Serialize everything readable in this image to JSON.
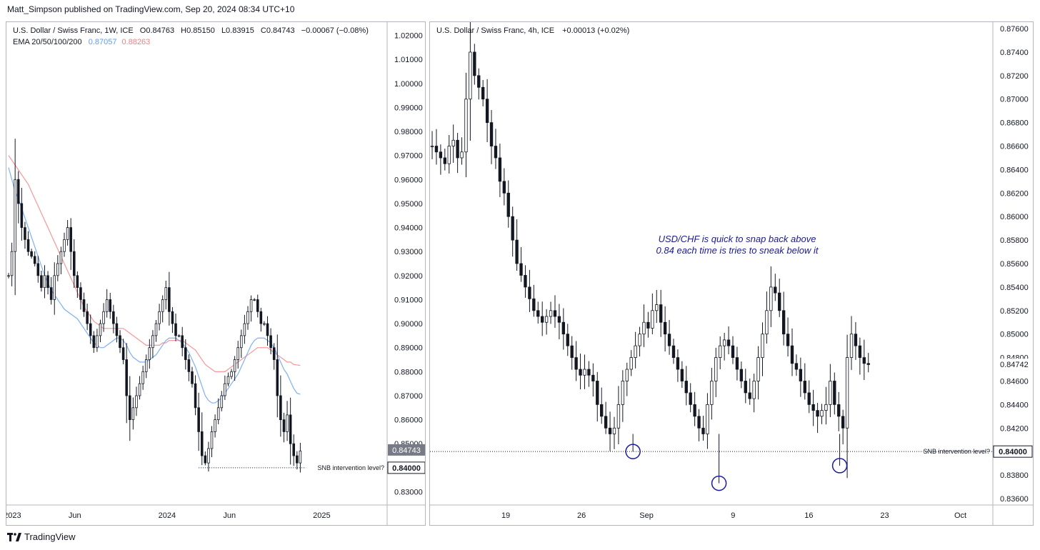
{
  "header": {
    "publisher_line": "Matt_Simpson published on TradingView.com, Sep 20, 2024 08:34 UTC+10"
  },
  "footer": {
    "brand": "TradingView",
    "logo_icon": "tradingview-logo-icon"
  },
  "colors": {
    "candle": "#131722",
    "ema_blue": "#5b9cf6",
    "ema_red": "#f77c80",
    "annotation": "#1a1a8c",
    "circle": "#1a1aa0",
    "price_box_grey": "#787b86"
  },
  "chart_data": [
    {
      "type": "candlestick",
      "symbol_line": "U.S. Dollar / Swiss Franc, 1W, ICE",
      "ohlc": {
        "o_label": "O0.84763",
        "h_label": "H0.85150",
        "l_label": "L0.83915",
        "c_label": "C0.84743",
        "change": "−0.00067 (−0.08%)"
      },
      "indicator_label": "EMA 20/50/100/200",
      "ema_values": {
        "ema_blue_value": "0.87057",
        "ema_red_value": "0.88263"
      },
      "y_ticks": [
        "1.02000",
        "1.01000",
        "1.00000",
        "0.99000",
        "0.98000",
        "0.97000",
        "0.96000",
        "0.95000",
        "0.94000",
        "0.93000",
        "0.92000",
        "0.91000",
        "0.90000",
        "0.89000",
        "0.88000",
        "0.87000",
        "0.86000",
        "0.85000",
        "0.83000"
      ],
      "y_tick_values": [
        1.02,
        1.01,
        1.0,
        0.99,
        0.98,
        0.97,
        0.96,
        0.95,
        0.94,
        0.93,
        0.92,
        0.91,
        0.9,
        0.89,
        0.88,
        0.87,
        0.86,
        0.85,
        0.83
      ],
      "ylim": [
        0.8245,
        1.0255
      ],
      "x_ticks": [
        "2023",
        "Jun",
        "2024",
        "Jun",
        "2025"
      ],
      "x_tick_weeks": [
        2,
        23,
        54,
        75,
        106
      ],
      "x_range_weeks": [
        0,
        128
      ],
      "price_boxes": [
        {
          "label": "0.84743",
          "value": 0.84743,
          "style": "grey"
        },
        {
          "label": "0.84000",
          "value": 0.84,
          "style": "white"
        }
      ],
      "level_line": {
        "value": 0.84,
        "label": "SNB intervention level?"
      },
      "close_series": [
        0.92,
        0.93,
        0.96,
        0.95,
        0.94,
        0.935,
        0.93,
        0.928,
        0.925,
        0.92,
        0.915,
        0.92,
        0.915,
        0.91,
        0.92,
        0.925,
        0.93,
        0.935,
        0.94,
        0.93,
        0.92,
        0.915,
        0.91,
        0.905,
        0.9,
        0.895,
        0.89,
        0.895,
        0.9,
        0.905,
        0.91,
        0.905,
        0.9,
        0.895,
        0.89,
        0.885,
        0.87,
        0.86,
        0.865,
        0.87,
        0.875,
        0.88,
        0.885,
        0.89,
        0.895,
        0.9,
        0.905,
        0.91,
        0.915,
        0.905,
        0.9,
        0.895,
        0.895,
        0.89,
        0.885,
        0.88,
        0.875,
        0.865,
        0.855,
        0.845,
        0.842,
        0.848,
        0.855,
        0.86,
        0.865,
        0.87,
        0.875,
        0.878,
        0.88,
        0.885,
        0.89,
        0.895,
        0.9,
        0.905,
        0.91,
        0.91,
        0.905,
        0.9,
        0.9,
        0.895,
        0.89,
        0.885,
        0.87,
        0.86,
        0.855,
        0.862,
        0.85,
        0.845,
        0.842,
        0.847
      ],
      "ema_blue_series": [
        0.965,
        0.96,
        0.955,
        0.952,
        0.948,
        0.944,
        0.94,
        0.936,
        0.932,
        0.928,
        0.924,
        0.92,
        0.917,
        0.914,
        0.912,
        0.91,
        0.908,
        0.906,
        0.905,
        0.904,
        0.903,
        0.902,
        0.9,
        0.898,
        0.896,
        0.894,
        0.892,
        0.891,
        0.89,
        0.89,
        0.891,
        0.892,
        0.893,
        0.894,
        0.894,
        0.893,
        0.891,
        0.888,
        0.886,
        0.885,
        0.884,
        0.884,
        0.884,
        0.885,
        0.886,
        0.887,
        0.889,
        0.891,
        0.893,
        0.894,
        0.894,
        0.894,
        0.893,
        0.892,
        0.89,
        0.888,
        0.885,
        0.882,
        0.878,
        0.874,
        0.87,
        0.868,
        0.867,
        0.867,
        0.868,
        0.869,
        0.871,
        0.873,
        0.875,
        0.877,
        0.879,
        0.882,
        0.885,
        0.888,
        0.891,
        0.893,
        0.894,
        0.894,
        0.894,
        0.893,
        0.892,
        0.89,
        0.887,
        0.884,
        0.881,
        0.879,
        0.876,
        0.873,
        0.871,
        0.8706
      ],
      "ema_red_series": [
        0.97,
        0.968,
        0.966,
        0.964,
        0.962,
        0.96,
        0.958,
        0.955,
        0.952,
        0.949,
        0.946,
        0.943,
        0.94,
        0.937,
        0.934,
        0.931,
        0.928,
        0.925,
        0.922,
        0.919,
        0.916,
        0.913,
        0.91,
        0.907,
        0.905,
        0.903,
        0.901,
        0.9,
        0.899,
        0.898,
        0.898,
        0.898,
        0.898,
        0.898,
        0.898,
        0.898,
        0.897,
        0.896,
        0.895,
        0.894,
        0.893,
        0.892,
        0.891,
        0.891,
        0.891,
        0.891,
        0.891,
        0.892,
        0.892,
        0.893,
        0.893,
        0.893,
        0.893,
        0.893,
        0.892,
        0.891,
        0.89,
        0.889,
        0.887,
        0.885,
        0.883,
        0.882,
        0.881,
        0.88,
        0.88,
        0.88,
        0.88,
        0.881,
        0.882,
        0.883,
        0.884,
        0.885,
        0.886,
        0.887,
        0.888,
        0.889,
        0.89,
        0.89,
        0.89,
        0.89,
        0.889,
        0.888,
        0.887,
        0.886,
        0.885,
        0.884,
        0.884,
        0.883,
        0.8828,
        0.8826
      ]
    },
    {
      "type": "candlestick",
      "symbol_line": "U.S. Dollar / Swiss Franc, 4h, ICE",
      "change": "+0.00013 (+0.02%)",
      "y_ticks": [
        "0.87600",
        "0.87400",
        "0.87200",
        "0.87000",
        "0.86800",
        "0.86600",
        "0.86400",
        "0.86200",
        "0.86000",
        "0.85800",
        "0.85600",
        "0.85400",
        "0.85200",
        "0.85000",
        "0.84800",
        "0.84600",
        "0.84400",
        "0.84200",
        "0.83800",
        "0.83600"
      ],
      "y_tick_values": [
        0.876,
        0.874,
        0.872,
        0.87,
        0.868,
        0.866,
        0.864,
        0.862,
        0.86,
        0.858,
        0.856,
        0.854,
        0.852,
        0.85,
        0.848,
        0.846,
        0.844,
        0.842,
        0.838,
        0.836
      ],
      "ylim": [
        0.83545,
        0.87655
      ],
      "x_ticks": [
        "19",
        "26",
        "Sep",
        "9",
        "16",
        "23",
        "Oct"
      ],
      "x_tick_days": [
        19,
        26,
        32,
        40,
        47,
        54,
        61
      ],
      "x_range_days": [
        12,
        64
      ],
      "price_boxes": [
        {
          "label": "0.84742",
          "value": 0.84742,
          "style": "plain"
        },
        {
          "label": "0.84000",
          "value": 0.84,
          "style": "white-bold"
        }
      ],
      "level_line": {
        "value": 0.84,
        "label": "SNB intervention level?"
      },
      "annotation": {
        "line1": "USD/CHF is quick to snap back above",
        "line2": "0.84 each time is tries to sneak below it"
      },
      "circled_lows": [
        {
          "day": 30.75,
          "value": 0.84
        },
        {
          "day": 38.7,
          "value": 0.8373
        },
        {
          "day": 49.85,
          "value": 0.8388
        }
      ],
      "close_series": [
        0.866,
        0.8655,
        0.865,
        0.8645,
        0.866,
        0.8665,
        0.865,
        0.8655,
        0.87,
        0.874,
        0.872,
        0.871,
        0.87,
        0.868,
        0.866,
        0.865,
        0.863,
        0.862,
        0.86,
        0.858,
        0.856,
        0.855,
        0.854,
        0.853,
        0.852,
        0.8515,
        0.851,
        0.8515,
        0.852,
        0.8515,
        0.851,
        0.85,
        0.849,
        0.848,
        0.847,
        0.8465,
        0.847,
        0.8465,
        0.846,
        0.844,
        0.843,
        0.842,
        0.8415,
        0.842,
        0.844,
        0.846,
        0.847,
        0.848,
        0.849,
        0.85,
        0.851,
        0.8505,
        0.852,
        0.8525,
        0.851,
        0.85,
        0.849,
        0.848,
        0.847,
        0.846,
        0.845,
        0.844,
        0.843,
        0.842,
        0.8415,
        0.844,
        0.846,
        0.848,
        0.849,
        0.8495,
        0.849,
        0.848,
        0.847,
        0.846,
        0.845,
        0.8445,
        0.846,
        0.848,
        0.85,
        0.852,
        0.854,
        0.8535,
        0.852,
        0.85,
        0.849,
        0.8475,
        0.847,
        0.846,
        0.845,
        0.844,
        0.8435,
        0.843,
        0.8435,
        0.844,
        0.846,
        0.844,
        0.843,
        0.842,
        0.848,
        0.85,
        0.849,
        0.848,
        0.8475,
        0.8474
      ]
    }
  ]
}
